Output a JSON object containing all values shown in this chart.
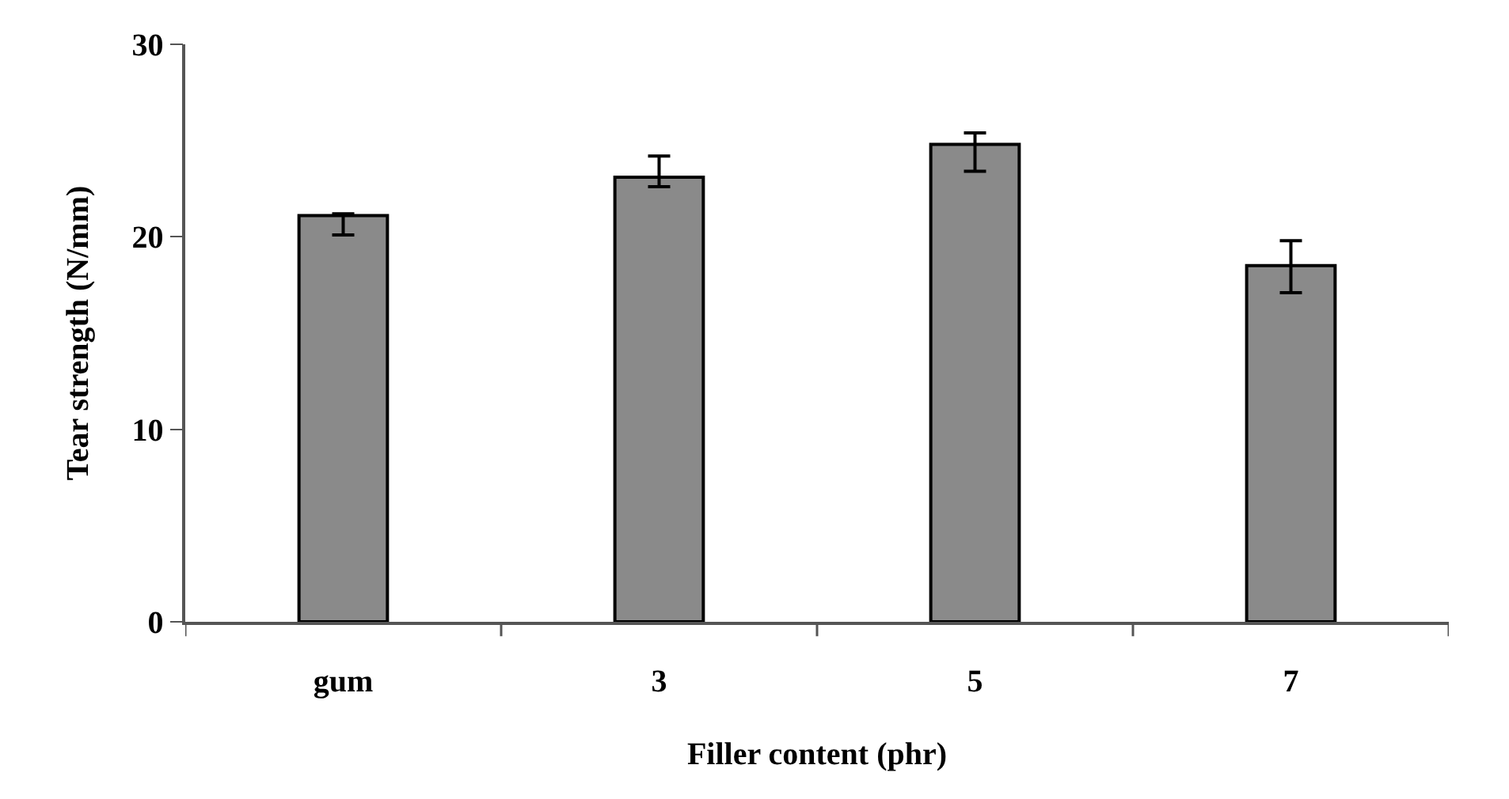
{
  "chart_data": {
    "type": "bar",
    "xlabel": "Filler content (phr)",
    "ylabel": "Tear strength (N/mm)",
    "categories": [
      "gum",
      "3",
      "5",
      "7"
    ],
    "values": [
      21.1,
      23.1,
      24.8,
      18.5
    ],
    "errors": [
      [
        20.1,
        21.2
      ],
      [
        22.6,
        24.2
      ],
      [
        23.4,
        25.4
      ],
      [
        17.1,
        19.8
      ]
    ],
    "color": "#8a8a8a",
    "ylim": [
      0,
      30
    ],
    "yticks": [
      0,
      10,
      20,
      30
    ],
    "grid": false
  }
}
